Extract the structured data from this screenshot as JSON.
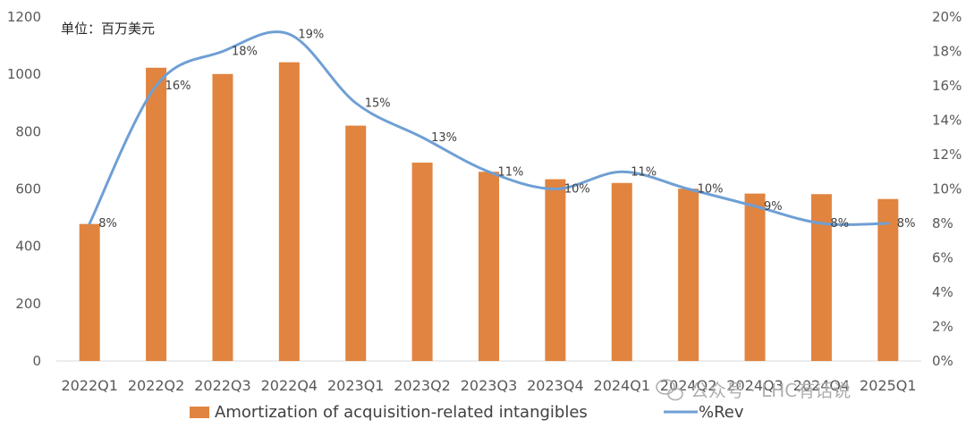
{
  "chart_data": {
    "type": "bar",
    "unit_label": "单位：百万美元",
    "categories": [
      "2022Q1",
      "2022Q2",
      "2022Q3",
      "2022Q4",
      "2023Q1",
      "2023Q2",
      "2023Q3",
      "2023Q4",
      "2024Q1",
      "2024Q2",
      "2024Q3",
      "2024Q4",
      "2025Q1"
    ],
    "series": [
      {
        "name": "Amortization of acquisition-related intangibles",
        "kind": "bar",
        "axis": "left",
        "color": "#E0843F",
        "values": [
          478,
          1023,
          1001,
          1042,
          821,
          692,
          660,
          634,
          621,
          601,
          584,
          582,
          565
        ]
      },
      {
        "name": "%Rev",
        "kind": "line",
        "axis": "right",
        "color": "#6F9FD4",
        "values": [
          8,
          16,
          18,
          19,
          15,
          13,
          11,
          10,
          11,
          10,
          9,
          8,
          8
        ],
        "labels": [
          "8%",
          "16%",
          "18%",
          "19%",
          "15%",
          "13%",
          "11%",
          "10%",
          "11%",
          "10%",
          "9%",
          "8%",
          "8%"
        ]
      }
    ],
    "y_left": {
      "min": 0,
      "max": 1200,
      "ticks": [
        "0",
        "200",
        "400",
        "600",
        "800",
        "1000",
        "1200"
      ]
    },
    "y_right": {
      "min": 0,
      "max": 20,
      "ticks": [
        "0%",
        "2%",
        "4%",
        "6%",
        "8%",
        "10%",
        "12%",
        "14%",
        "16%",
        "18%",
        "20%"
      ]
    },
    "grid": false,
    "legend_position": "bottom"
  },
  "watermark": "公众号 · LHC有话说"
}
